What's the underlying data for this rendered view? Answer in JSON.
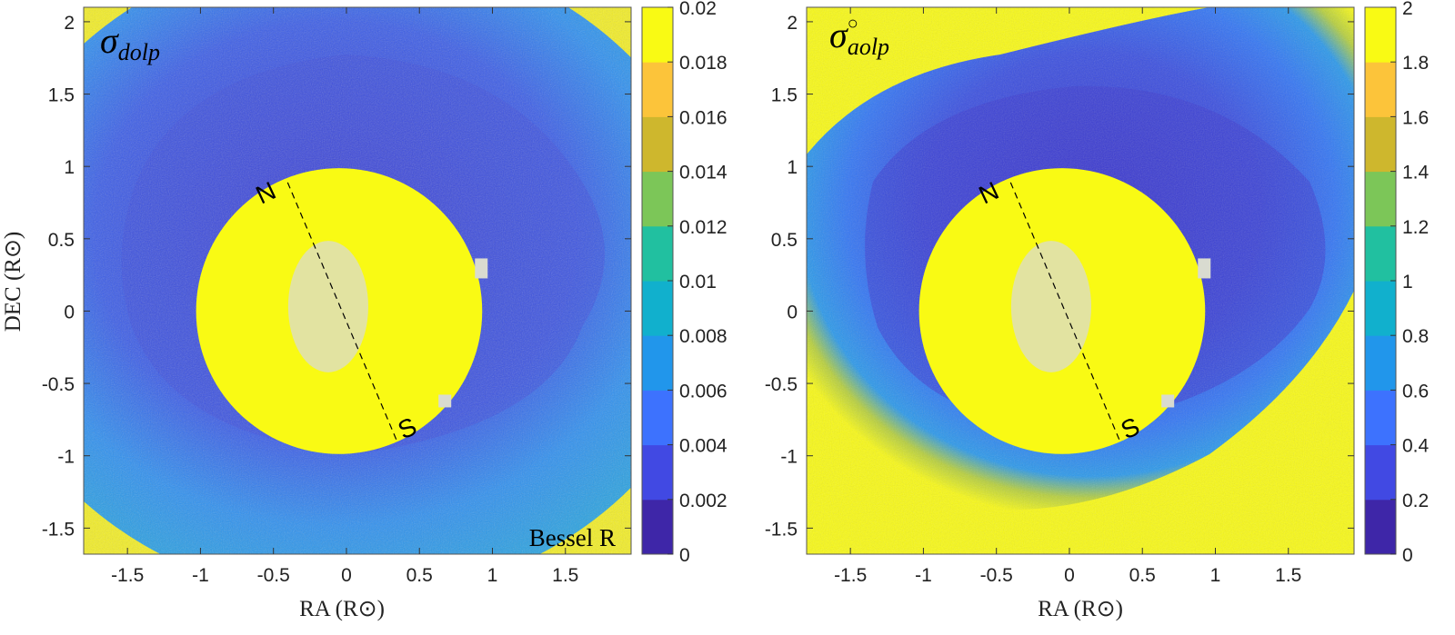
{
  "colors": {
    "parula": [
      "#3e26a8",
      "#4149e3",
      "#3d72fe",
      "#2196eb",
      "#11b0cd",
      "#21c0a0",
      "#7cc658",
      "#ceb72d",
      "#fcc43a",
      "#f9fa14"
    ],
    "yellow": "#f9fa14",
    "blue_dark": "#3e35cf",
    "blue_mid": "#3a63ef",
    "blue_light": "#2a98ea",
    "occulter_gray": "#d9dbd0"
  },
  "chart_data": [
    {
      "type": "heatmap",
      "panel_id": "left",
      "annotation": "σ",
      "annotation_subscript": "dolp",
      "band_label": "Bessel R",
      "xlabel": "RA (R⊙)",
      "ylabel": "DEC (R⊙)",
      "xlim": [
        -1.8,
        1.95
      ],
      "ylim": [
        2.1,
        -1.68
      ],
      "xticks": [
        -1.5,
        -1,
        -0.5,
        0,
        0.5,
        1,
        1.5
      ],
      "xtick_labels": [
        "-1.5",
        "-1",
        "-0.5",
        "0",
        "0.5",
        "1",
        "1.5"
      ],
      "yticks": [
        -1.5,
        -1,
        -0.5,
        0,
        0.5,
        1,
        1.5,
        2
      ],
      "ytick_labels": [
        "-1.5",
        "-1",
        "-0.5",
        "0",
        "0.5",
        "1",
        "1.5",
        "2"
      ],
      "colorbar": {
        "min": 0,
        "max": 0.02,
        "levels": 10,
        "tick_values": [
          0,
          0.002,
          0.004,
          0.006,
          0.008,
          0.01,
          0.012,
          0.014,
          0.016,
          0.018,
          0.02
        ],
        "tick_labels": [
          "0",
          "0.002",
          "0.004",
          "0.006",
          "0.008",
          "0.01",
          "0.012",
          "0.014",
          "0.016",
          "0.018",
          "0.02"
        ]
      },
      "north_label": "N",
      "south_label": "S",
      "sun_disk": {
        "center_ra": -0.05,
        "center_dec": 0.0,
        "radius": 0.98
      }
    },
    {
      "type": "heatmap",
      "panel_id": "right",
      "annotation": "σ",
      "annotation_subscript": "aolp",
      "annotation_superscript": "○",
      "band_label": "",
      "xlabel": "RA (R⊙)",
      "ylabel": "",
      "xlim": [
        -1.8,
        1.95
      ],
      "ylim": [
        2.1,
        -1.68
      ],
      "xticks": [
        -1.5,
        -1,
        -0.5,
        0,
        0.5,
        1,
        1.5
      ],
      "xtick_labels": [
        "-1.5",
        "-1",
        "-0.5",
        "0",
        "0.5",
        "1",
        "1.5"
      ],
      "yticks": [
        -1.5,
        -1,
        -0.5,
        0,
        0.5,
        1,
        1.5,
        2
      ],
      "ytick_labels": [
        "-1.5",
        "-1",
        "-0.5",
        "0",
        "0.5",
        "1",
        "1.5",
        "2"
      ],
      "colorbar": {
        "min": 0,
        "max": 2,
        "levels": 10,
        "tick_values": [
          0,
          0.2,
          0.4,
          0.6,
          0.8,
          1,
          1.2,
          1.4,
          1.6,
          1.8,
          2
        ],
        "tick_labels": [
          "0",
          "0.2",
          "0.4",
          "0.6",
          "0.8",
          "1",
          "1.2",
          "1.4",
          "1.6",
          "1.8",
          "2"
        ]
      },
      "north_label": "N",
      "south_label": "S",
      "sun_disk": {
        "center_ra": -0.05,
        "center_dec": 0.0,
        "radius": 0.98
      }
    }
  ]
}
